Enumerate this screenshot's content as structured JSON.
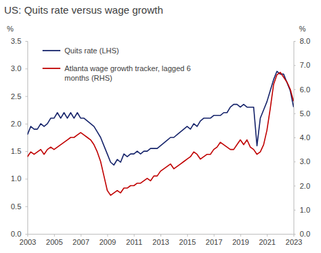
{
  "chart_data": {
    "type": "line",
    "title": "US: Quits rate versus wage growth",
    "y_label": "%",
    "y2_label": "%",
    "legend": "upper left",
    "grid": false,
    "x": [
      2003,
      2003.25,
      2003.5,
      2003.75,
      2004,
      2004.25,
      2004.5,
      2004.75,
      2005,
      2005.25,
      2005.5,
      2005.75,
      2006,
      2006.25,
      2006.5,
      2006.75,
      2007,
      2007.25,
      2007.5,
      2007.75,
      2008,
      2008.25,
      2008.5,
      2008.75,
      2009,
      2009.25,
      2009.5,
      2009.75,
      2010,
      2010.25,
      2010.5,
      2010.75,
      2011,
      2011.25,
      2011.5,
      2011.75,
      2012,
      2012.25,
      2012.5,
      2012.75,
      2013,
      2013.25,
      2013.5,
      2013.75,
      2014,
      2014.25,
      2014.5,
      2014.75,
      2015,
      2015.25,
      2015.5,
      2015.75,
      2016,
      2016.25,
      2016.5,
      2016.75,
      2017,
      2017.25,
      2017.5,
      2017.75,
      2018,
      2018.25,
      2018.5,
      2018.75,
      2019,
      2019.25,
      2019.5,
      2019.75,
      2020,
      2020.25,
      2020.5,
      2020.75,
      2021,
      2021.25,
      2021.5,
      2021.75,
      2022,
      2022.25,
      2022.5,
      2022.75,
      2023
    ],
    "xlim": [
      2003,
      2023
    ],
    "xticks": [
      2003,
      2005,
      2007,
      2009,
      2011,
      2013,
      2015,
      2017,
      2019,
      2021,
      2023
    ],
    "ylim": [
      0,
      3.5
    ],
    "yticks": [
      {
        "value": 0,
        "label": "0.0"
      },
      0.5,
      {
        "value": 1,
        "label": "1.0"
      },
      1.5,
      {
        "value": 2,
        "label": "2.0"
      },
      2.5,
      {
        "value": 3,
        "label": "3.0"
      },
      3.5
    ],
    "y2lim": [
      0,
      8
    ],
    "y2ticks": [
      {
        "value": 0,
        "label": "0.0"
      },
      {
        "value": 1,
        "label": "1.0"
      },
      {
        "value": 2,
        "label": "2.0"
      },
      {
        "value": 3,
        "label": "3.0"
      },
      {
        "value": 4,
        "label": "4.0"
      },
      {
        "value": 5,
        "label": "5.0"
      },
      {
        "value": 6,
        "label": "6.0"
      },
      {
        "value": 7,
        "label": "7.0"
      },
      {
        "value": 8,
        "label": "8.0"
      }
    ],
    "series": [
      {
        "name": "Quits rate (LHS)",
        "color": "#16246b",
        "axis": "y",
        "values": [
          1.8,
          1.95,
          1.9,
          1.9,
          2.0,
          1.95,
          2.0,
          2.1,
          2.1,
          2.2,
          2.1,
          2.2,
          2.1,
          2.2,
          2.1,
          2.2,
          2.1,
          2.1,
          2.05,
          2.0,
          1.95,
          1.85,
          1.75,
          1.6,
          1.45,
          1.3,
          1.25,
          1.35,
          1.3,
          1.45,
          1.4,
          1.45,
          1.45,
          1.5,
          1.45,
          1.5,
          1.5,
          1.55,
          1.55,
          1.55,
          1.6,
          1.65,
          1.7,
          1.75,
          1.75,
          1.8,
          1.85,
          1.9,
          1.95,
          1.9,
          2.0,
          1.95,
          2.05,
          2.1,
          2.1,
          2.1,
          2.15,
          2.15,
          2.15,
          2.2,
          2.2,
          2.3,
          2.35,
          2.35,
          2.3,
          2.35,
          2.3,
          2.3,
          2.3,
          1.6,
          2.1,
          2.25,
          2.4,
          2.6,
          2.8,
          2.95,
          2.9,
          2.9,
          2.75,
          2.6,
          2.3
        ]
      },
      {
        "name": "Atlanta wage growth tracker, lagged 6 months (RHS)",
        "color": "#c00000",
        "axis": "y2",
        "values": [
          3.2,
          3.4,
          3.3,
          3.4,
          3.5,
          3.3,
          3.5,
          3.6,
          3.5,
          3.6,
          3.7,
          3.8,
          3.9,
          4.0,
          4.0,
          4.1,
          4.2,
          4.1,
          4.0,
          3.9,
          3.7,
          3.4,
          3.0,
          2.4,
          1.8,
          1.6,
          1.7,
          1.8,
          1.7,
          1.9,
          1.9,
          2.0,
          2.0,
          2.1,
          2.1,
          2.2,
          2.3,
          2.2,
          2.4,
          2.4,
          2.6,
          2.7,
          2.8,
          2.9,
          2.7,
          2.8,
          2.9,
          3.0,
          3.1,
          3.2,
          3.4,
          3.3,
          3.1,
          3.2,
          3.3,
          3.3,
          3.5,
          3.6,
          3.8,
          3.7,
          3.6,
          3.5,
          3.5,
          3.7,
          3.9,
          3.7,
          3.9,
          3.6,
          3.5,
          3.3,
          3.4,
          3.7,
          4.3,
          5.2,
          6.2,
          6.6,
          6.7,
          6.5,
          6.3,
          6.0,
          5.5
        ]
      }
    ]
  }
}
